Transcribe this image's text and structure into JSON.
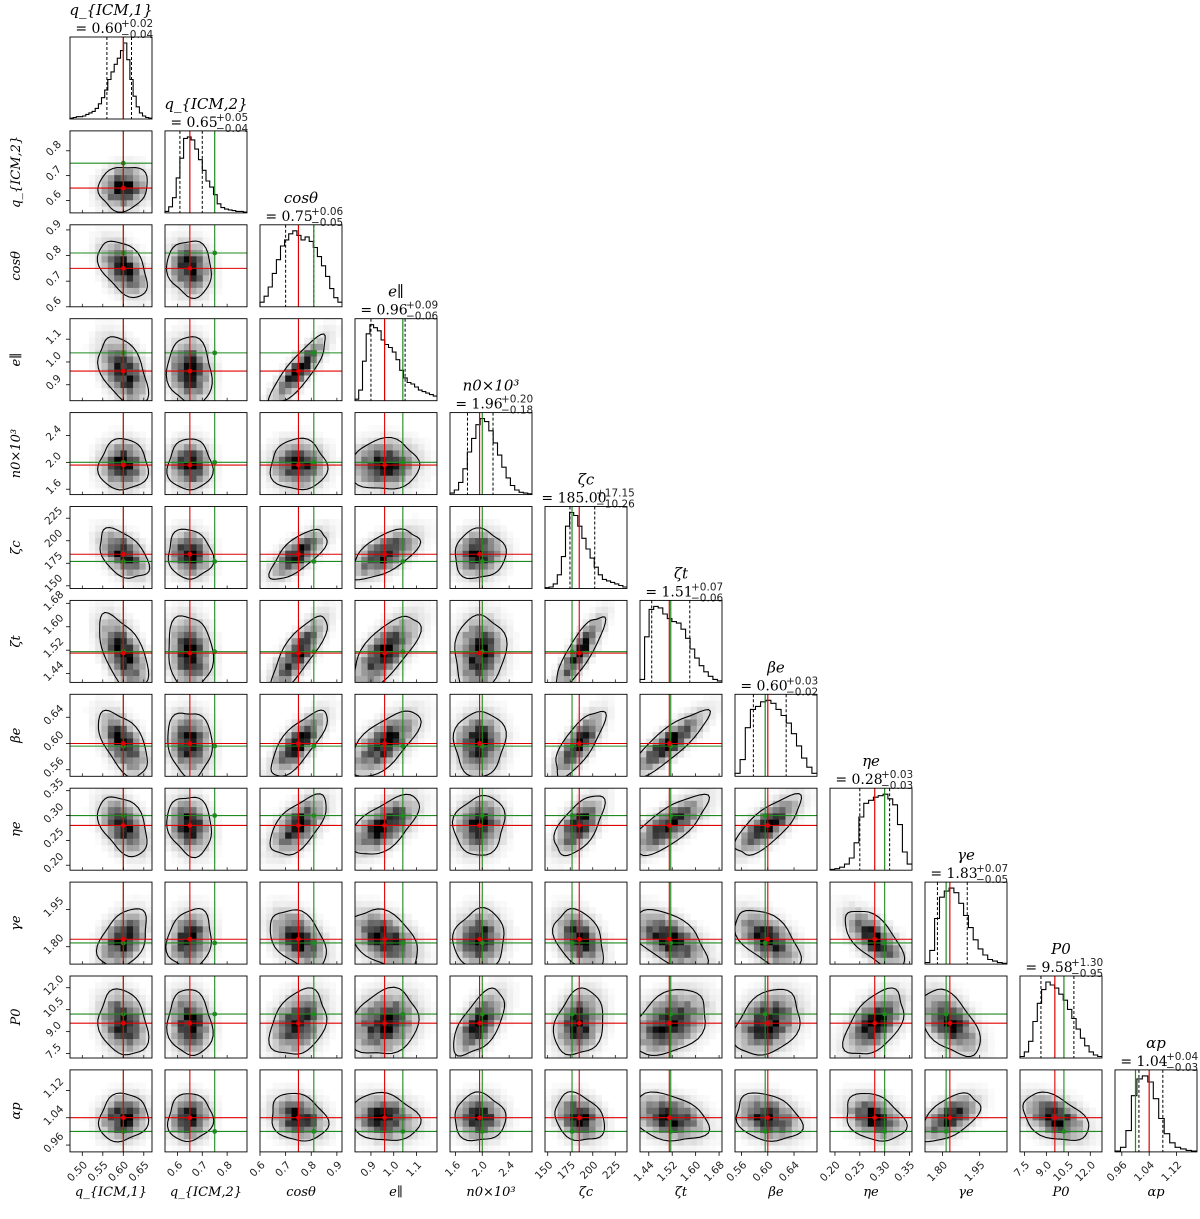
{
  "chart_data": {
    "type": "corner",
    "layout": "lower-triangle",
    "truth_color": "#1f8a1f",
    "median_color": "#e00000",
    "contour_color": "#000000",
    "params": [
      {
        "name": "q_ICM,1",
        "label": "q_{ICM,1}",
        "title": "= 0.60",
        "title_sup": "+0.02",
        "title_sub": "−0.04",
        "range": [
          0.47,
          0.67
        ],
        "ticks": [
          "0.50",
          "0.55",
          "0.60",
          "0.65"
        ],
        "tick_values": [
          0.5,
          0.55,
          0.6,
          0.65
        ],
        "median": 0.6,
        "q16": 0.56,
        "q84": 0.62,
        "truth": 0.6,
        "hist": [
          1,
          2,
          3,
          3,
          4,
          6,
          8,
          10,
          14,
          20,
          28,
          38,
          52,
          62,
          72,
          80,
          90,
          100,
          78,
          52,
          30,
          16,
          8,
          4,
          2,
          1
        ]
      },
      {
        "name": "q_ICM,2",
        "label": "q_{ICM,2}",
        "title": "= 0.65",
        "title_sup": "+0.05",
        "title_sub": "−0.04",
        "range": [
          0.55,
          0.88
        ],
        "ticks": [
          "0.6",
          "0.7",
          "0.8"
        ],
        "tick_values": [
          0.6,
          0.7,
          0.8
        ],
        "median": 0.65,
        "q16": 0.61,
        "q84": 0.7,
        "truth": 0.75,
        "hist": [
          2,
          8,
          20,
          46,
          72,
          98,
          100,
          96,
          84,
          70,
          56,
          42,
          34,
          24,
          12,
          7,
          5,
          4,
          3,
          2,
          2,
          1
        ]
      },
      {
        "name": "cos θ",
        "label": "cosθ",
        "title": "= 0.75",
        "title_sup": "+0.06",
        "title_sub": "−0.05",
        "range": [
          0.6,
          0.92
        ],
        "ticks": [
          "0.6",
          "0.7",
          "0.8",
          "0.9"
        ],
        "tick_values": [
          0.6,
          0.7,
          0.8,
          0.9
        ],
        "median": 0.75,
        "q16": 0.7,
        "q84": 0.81,
        "truth": 0.81,
        "hist": [
          6,
          14,
          26,
          44,
          62,
          80,
          88,
          96,
          100,
          94,
          88,
          92,
          86,
          78,
          66,
          54,
          40,
          24,
          12,
          6
        ]
      },
      {
        "name": "e_∥",
        "label": "e∥",
        "title": "= 0.96",
        "title_sup": "+0.09",
        "title_sub": "−0.06",
        "range": [
          0.83,
          1.19
        ],
        "ticks": [
          "0.9",
          "1.0",
          "1.1"
        ],
        "tick_values": [
          0.9,
          1.0,
          1.1
        ],
        "median": 0.96,
        "q16": 0.9,
        "q84": 1.05,
        "truth": 1.04,
        "hist": [
          2,
          14,
          52,
          88,
          100,
          96,
          92,
          80,
          74,
          70,
          64,
          54,
          40,
          30,
          24,
          22,
          18,
          14,
          12,
          10,
          8,
          6
        ]
      },
      {
        "name": "n0 × 10^3",
        "label": "n0×10³",
        "title": "= 1.96",
        "title_sup": "+0.20",
        "title_sub": "−0.18",
        "range": [
          1.52,
          2.74
        ],
        "ticks": [
          "1.6",
          "2.0",
          "2.4"
        ],
        "tick_values": [
          1.6,
          2.0,
          2.4
        ],
        "median": 1.96,
        "q16": 1.78,
        "q84": 2.16,
        "truth": 2.0,
        "hist": [
          2,
          6,
          16,
          34,
          56,
          74,
          92,
          100,
          96,
          84,
          68,
          52,
          36,
          22,
          12,
          6,
          3,
          2,
          1
        ]
      },
      {
        "name": "ζ_c",
        "label": "ζc",
        "title": "= 185.00",
        "title_sup": "+17.15",
        "title_sub": "−10.26",
        "range": [
          147,
          238
        ],
        "ticks": [
          "150",
          "175",
          "200",
          "225"
        ],
        "tick_values": [
          150,
          175,
          200,
          225
        ],
        "median": 185.0,
        "q16": 174.7,
        "q84": 202.2,
        "truth": 177.0,
        "hist": [
          1,
          2,
          6,
          18,
          42,
          82,
          100,
          96,
          82,
          66,
          52,
          40,
          28,
          18,
          12,
          10,
          8,
          6,
          4,
          2
        ]
      },
      {
        "name": "ζ_t",
        "label": "ζt",
        "title": "= 1.51",
        "title_sup": "+0.07",
        "title_sub": "−0.06",
        "range": [
          1.41,
          1.69
        ],
        "ticks": [
          "1.44",
          "1.52",
          "1.60",
          "1.68"
        ],
        "tick_values": [
          1.44,
          1.52,
          1.6,
          1.68
        ],
        "median": 1.51,
        "q16": 1.45,
        "q84": 1.58,
        "truth": 1.515,
        "hist": [
          4,
          60,
          96,
          100,
          98,
          90,
          84,
          80,
          78,
          70,
          58,
          44,
          32,
          22,
          14,
          8,
          4,
          2
        ]
      },
      {
        "name": "β_e",
        "label": "βe",
        "title": "= 0.60",
        "title_sup": "+0.03",
        "title_sub": "−0.02",
        "range": [
          0.55,
          0.675
        ],
        "ticks": [
          "0.56",
          "0.60",
          "0.64"
        ],
        "tick_values": [
          0.56,
          0.6,
          0.64
        ],
        "median": 0.6,
        "q16": 0.578,
        "q84": 0.628,
        "truth": 0.596,
        "hist": [
          4,
          22,
          64,
          88,
          92,
          98,
          100,
          96,
          88,
          80,
          70,
          56,
          40,
          24,
          12,
          4
        ]
      },
      {
        "name": "η_e",
        "label": "ηe",
        "title": "= 0.28",
        "title_sup": "+0.03",
        "title_sub": "−0.03",
        "range": [
          0.19,
          0.355
        ],
        "ticks": [
          "0.20",
          "0.25",
          "0.30",
          "0.35"
        ],
        "tick_values": [
          0.2,
          0.25,
          0.3,
          0.35
        ],
        "median": 0.28,
        "q16": 0.25,
        "q84": 0.31,
        "truth": 0.3,
        "hist": [
          1,
          2,
          4,
          8,
          16,
          36,
          70,
          88,
          92,
          96,
          98,
          100,
          94,
          86,
          60,
          24,
          8
        ]
      },
      {
        "name": "γ_e",
        "label": "γe",
        "title": "= 1.83",
        "title_sup": "+0.07",
        "title_sub": "−0.05",
        "range": [
          1.73,
          2.06
        ],
        "ticks": [
          "1.80",
          "1.95"
        ],
        "tick_values": [
          1.8,
          1.95
        ],
        "median": 1.83,
        "q16": 1.78,
        "q84": 1.9,
        "truth": 1.815,
        "hist": [
          2,
          18,
          60,
          88,
          96,
          100,
          94,
          80,
          64,
          48,
          32,
          20,
          12,
          6,
          4,
          2,
          1
        ]
      },
      {
        "name": "P_0",
        "label": "P0",
        "title": "= 9.58",
        "title_sup": "+1.30",
        "title_sub": "−0.95",
        "range": [
          7.2,
          12.8
        ],
        "ticks": [
          "7.5",
          "9.0",
          "10.5",
          "12.0"
        ],
        "tick_values": [
          7.5,
          9.0,
          10.5,
          12.0
        ],
        "median": 9.58,
        "q16": 8.63,
        "q84": 10.88,
        "truth": 10.2,
        "hist": [
          2,
          8,
          22,
          48,
          72,
          90,
          100,
          96,
          92,
          84,
          76,
          64,
          52,
          38,
          26,
          16,
          8,
          4,
          2
        ]
      },
      {
        "name": "α_p",
        "label": "αp",
        "title": "= 1.04",
        "title_sup": "+0.04",
        "title_sub": "−0.03",
        "range": [
          0.94,
          1.18
        ],
        "ticks": [
          "0.96",
          "1.04",
          "1.12"
        ],
        "tick_values": [
          0.96,
          1.04,
          1.12
        ],
        "median": 1.04,
        "q16": 1.01,
        "q84": 1.08,
        "truth": 1.0,
        "hist": [
          1,
          6,
          28,
          74,
          96,
          100,
          92,
          70,
          44,
          24,
          12,
          6,
          4,
          2,
          1
        ]
      }
    ],
    "correlations": [
      [],
      [
        0.1
      ],
      [
        -0.45,
        -0.1
      ],
      [
        -0.45,
        -0.1,
        0.85
      ],
      [
        0.0,
        0.0,
        0.0,
        0.05
      ],
      [
        -0.45,
        -0.1,
        0.7,
        0.6,
        0.05
      ],
      [
        -0.55,
        -0.1,
        0.8,
        0.7,
        0.1,
        0.85
      ],
      [
        -0.55,
        -0.1,
        0.75,
        0.65,
        0.05,
        0.75,
        0.85
      ],
      [
        -0.4,
        -0.15,
        0.6,
        0.6,
        0.1,
        0.6,
        0.75,
        0.75
      ],
      [
        0.4,
        0.15,
        -0.4,
        -0.4,
        0.05,
        -0.35,
        -0.55,
        -0.55,
        -0.65
      ],
      [
        -0.2,
        -0.1,
        0.3,
        0.2,
        0.6,
        0.2,
        0.35,
        0.3,
        0.5,
        -0.5
      ],
      [
        0.1,
        0.05,
        -0.2,
        -0.15,
        0.0,
        -0.25,
        -0.3,
        -0.25,
        -0.3,
        0.55,
        -0.4
      ]
    ]
  }
}
